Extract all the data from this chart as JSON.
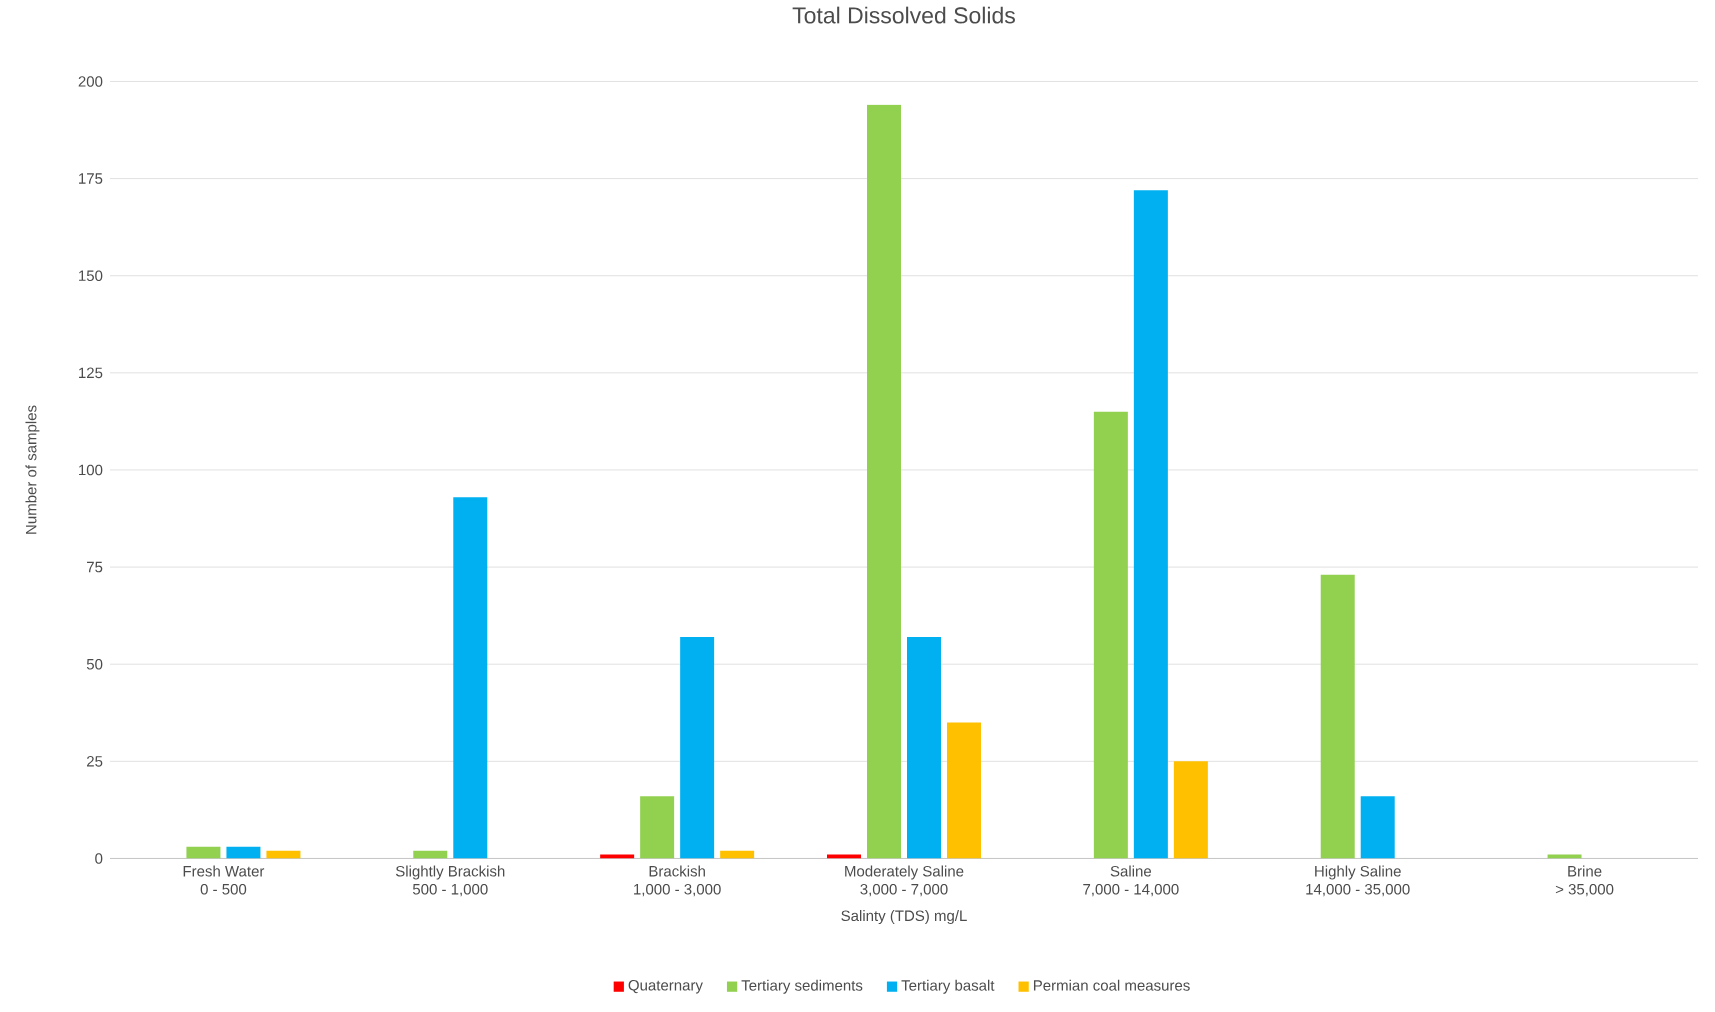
{
  "chart_data": {
    "type": "bar",
    "title": "Total Dissolved Solids",
    "xlabel": "Salinty (TDS) mg/L",
    "ylabel": "Number of samples",
    "categories": [
      "Fresh Water\n0 - 500",
      "Slightly Brackish\n500 - 1,000",
      "Brackish\n1,000 - 3,000",
      "Moderately Saline\n3,000 - 7,000",
      "Saline\n7,000 - 14,000",
      "Highly Saline\n14,000 - 35,000",
      "Brine\n> 35,000"
    ],
    "series": [
      {
        "name": "Quaternary",
        "color": "#ff0000",
        "values": [
          null,
          null,
          1,
          1,
          null,
          null,
          null
        ]
      },
      {
        "name": "Tertiary sediments",
        "color": "#92d050",
        "values": [
          3,
          2,
          16,
          194,
          115,
          73,
          1
        ]
      },
      {
        "name": "Tertiary basalt",
        "color": "#00b0f0",
        "values": [
          3,
          93,
          57,
          57,
          172,
          16,
          null
        ]
      },
      {
        "name": "Permian coal measures",
        "color": "#ffc000",
        "values": [
          2,
          null,
          2,
          35,
          25,
          null,
          null
        ]
      }
    ],
    "ylim": [
      0,
      200
    ],
    "yticks": [
      0,
      25,
      50,
      75,
      100,
      125,
      150,
      175,
      200
    ],
    "grid": "y",
    "legend": "bottom"
  }
}
